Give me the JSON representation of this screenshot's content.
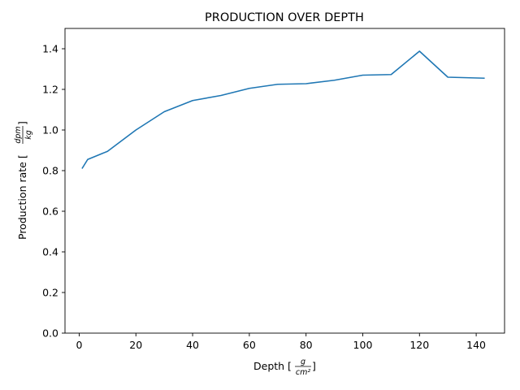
{
  "chart_data": {
    "type": "line",
    "title": "PRODUCTION OVER DEPTH",
    "xlabel": {
      "prefix": "Depth [",
      "numerator": "g",
      "denominator": "cm²",
      "suffix": "]"
    },
    "ylabel": {
      "prefix": "Production rate [",
      "numerator": "dpm",
      "denominator": "kg",
      "suffix": "]"
    },
    "xlim": [
      -5,
      150
    ],
    "ylim": [
      0,
      1.5
    ],
    "xticks": [
      0,
      20,
      40,
      60,
      80,
      100,
      120,
      140
    ],
    "xtick_labels": [
      "0",
      "20",
      "40",
      "60",
      "80",
      "100",
      "120",
      "140"
    ],
    "yticks": [
      0.0,
      0.2,
      0.4,
      0.6,
      0.8,
      1.0,
      1.2,
      1.4
    ],
    "ytick_labels": [
      "0.0",
      "0.2",
      "0.4",
      "0.6",
      "0.8",
      "1.0",
      "1.2",
      "1.4"
    ],
    "grid": false,
    "series": [
      {
        "color": "#1f77b4",
        "x": [
          1,
          3,
          10,
          20,
          30,
          40,
          50,
          60,
          70,
          80,
          90,
          100,
          110,
          120,
          130,
          143
        ],
        "y": [
          0.81,
          0.855,
          0.895,
          1.0,
          1.09,
          1.145,
          1.17,
          1.205,
          1.225,
          1.228,
          1.245,
          1.27,
          1.273,
          1.388,
          1.26,
          1.255
        ]
      }
    ]
  }
}
